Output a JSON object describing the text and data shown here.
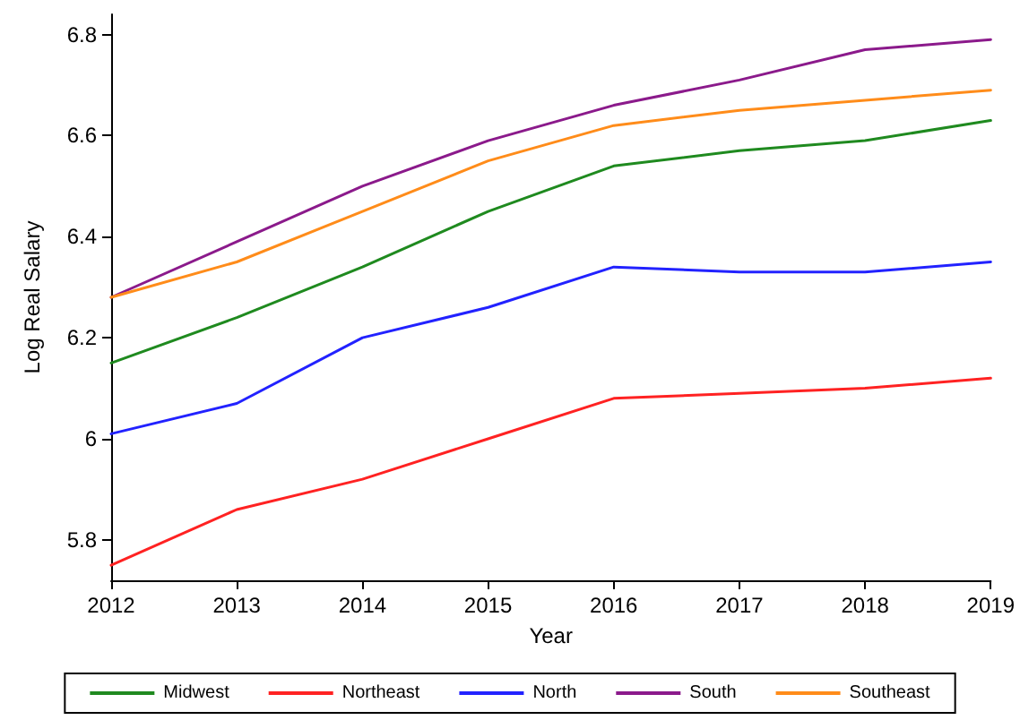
{
  "chart_data": {
    "type": "line",
    "xlabel": "Year",
    "ylabel": "Log Real Salary",
    "x": [
      2012,
      2013,
      2014,
      2015,
      2016,
      2017,
      2018,
      2019
    ],
    "series": [
      {
        "name": "Midwest",
        "color": "#1f8a1f",
        "values": [
          6.15,
          6.24,
          6.34,
          6.45,
          6.54,
          6.57,
          6.59,
          6.63
        ]
      },
      {
        "name": "Northeast",
        "color": "#ff2222",
        "values": [
          5.75,
          5.86,
          5.92,
          6.0,
          6.08,
          6.09,
          6.1,
          6.12
        ]
      },
      {
        "name": "North",
        "color": "#2222ff",
        "values": [
          6.01,
          6.07,
          6.2,
          6.26,
          6.34,
          6.33,
          6.33,
          6.35
        ]
      },
      {
        "name": "South",
        "color": "#8b1a8b",
        "values": [
          6.28,
          6.39,
          6.5,
          6.59,
          6.66,
          6.71,
          6.77,
          6.79
        ]
      },
      {
        "name": "Southeast",
        "color": "#ff8c1a",
        "values": [
          6.28,
          6.35,
          6.45,
          6.55,
          6.62,
          6.65,
          6.67,
          6.69
        ]
      }
    ],
    "xlim": [
      2012,
      2019
    ],
    "xticks": [
      2012,
      2013,
      2014,
      2015,
      2016,
      2017,
      2018,
      2019
    ],
    "ylim": [
      5.72,
      6.84
    ],
    "yticks": [
      5.8,
      6,
      6.2,
      6.4,
      6.6,
      6.8
    ],
    "grid": false,
    "legend": "bottom",
    "marker": "none",
    "line_style": "solid"
  }
}
